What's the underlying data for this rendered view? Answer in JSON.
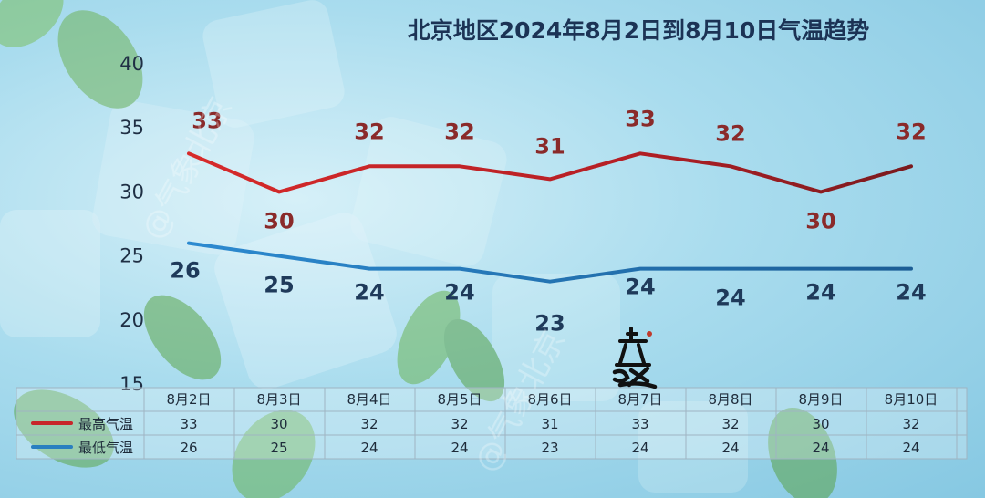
{
  "chart_data": {
    "type": "line",
    "title": "北京地区2024年8月2日到8月10日气温趋势",
    "categories": [
      "8月2日",
      "8月3日",
      "8月4日",
      "8月5日",
      "8月6日",
      "8月7日",
      "8月8日",
      "8月9日",
      "8月10日"
    ],
    "series": [
      {
        "name": "最高气温",
        "values": [
          33,
          30,
          32,
          32,
          31,
          33,
          32,
          30,
          32
        ],
        "color": "#c8262a"
      },
      {
        "name": "最低气温",
        "values": [
          26,
          25,
          24,
          24,
          23,
          24,
          24,
          24,
          24
        ],
        "color": "#2a7fc0"
      }
    ],
    "yticks": [
      "40",
      "35",
      "30",
      "25",
      "20",
      "15"
    ],
    "ylim": [
      15,
      40
    ],
    "grid": false,
    "legend": "bottom-left-table"
  },
  "watermark": "@气象北京",
  "stamp_text": "立秋"
}
